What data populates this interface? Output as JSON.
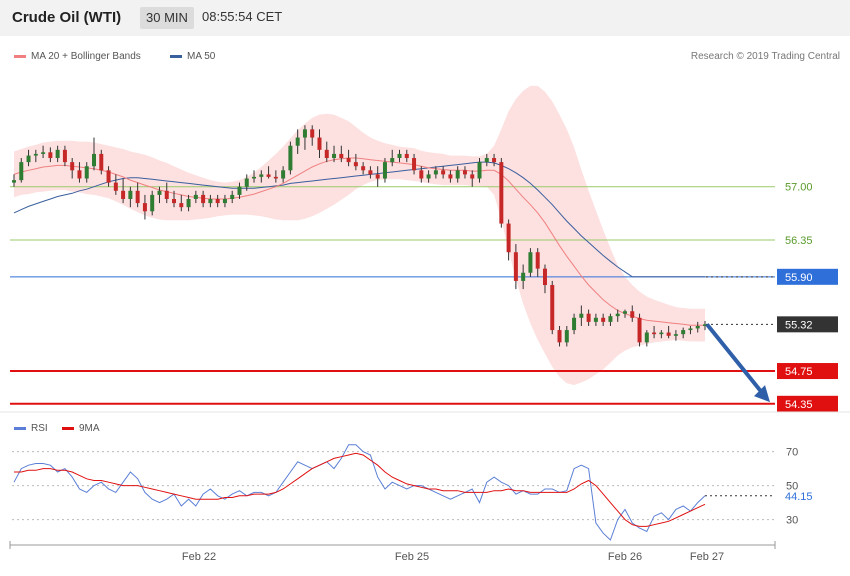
{
  "header": {
    "title": "Crude Oil (WTI)",
    "timeframe": "30 MIN",
    "time": "08:55:54 CET"
  },
  "legend": {
    "main": [
      {
        "name": "MA 20 + Bollinger Bands",
        "color": "#f08080"
      },
      {
        "name": "MA 50",
        "color": "#3a5f9e"
      }
    ],
    "rsi": [
      {
        "name": "RSI",
        "color": "#5b7fd6"
      },
      {
        "name": "9MA",
        "color": "#e01010"
      }
    ]
  },
  "credit": "Research © 2019 Trading Central",
  "chart_data": [
    {
      "type": "line",
      "title": "Crude Oil (WTI)",
      "ylim": [
        54.25,
        58.4
      ],
      "x_labels": [
        "Feb 22",
        "Feb 25",
        "Feb 26",
        "Feb 27"
      ],
      "levels": [
        {
          "value": 57.0,
          "label": "57.00",
          "style": "resistance",
          "color": "#9acb6a"
        },
        {
          "value": 56.35,
          "label": "56.35",
          "style": "resistance",
          "color": "#9acb6a"
        },
        {
          "value": 55.9,
          "label": "55.90",
          "style": "ma",
          "color": "#2f6fd9"
        },
        {
          "value": 55.32,
          "label": "55.32",
          "style": "last",
          "color": "#333333"
        },
        {
          "value": 54.75,
          "label": "54.75",
          "style": "support",
          "color": "#e01010"
        },
        {
          "value": 54.35,
          "label": "54.35",
          "style": "support",
          "color": "#e01010"
        }
      ],
      "ohlc": [
        [
          57.05,
          57.15,
          57.0,
          57.08
        ],
        [
          57.08,
          57.35,
          57.05,
          57.3
        ],
        [
          57.3,
          57.45,
          57.25,
          57.38
        ],
        [
          57.38,
          57.45,
          57.3,
          57.4
        ],
        [
          57.4,
          57.5,
          57.35,
          57.42
        ],
        [
          57.42,
          57.48,
          57.3,
          57.35
        ],
        [
          57.35,
          57.5,
          57.3,
          57.45
        ],
        [
          57.45,
          57.5,
          57.25,
          57.3
        ],
        [
          57.3,
          57.35,
          57.1,
          57.2
        ],
        [
          57.2,
          57.3,
          57.05,
          57.1
        ],
        [
          57.1,
          57.3,
          57.05,
          57.25
        ],
        [
          57.25,
          57.6,
          57.2,
          57.4
        ],
        [
          57.4,
          57.45,
          57.15,
          57.2
        ],
        [
          57.2,
          57.25,
          57.0,
          57.05
        ],
        [
          57.05,
          57.15,
          56.9,
          56.95
        ],
        [
          56.95,
          57.1,
          56.8,
          56.85
        ],
        [
          56.85,
          57.0,
          56.75,
          56.95
        ],
        [
          56.95,
          57.05,
          56.75,
          56.8
        ],
        [
          56.8,
          56.9,
          56.6,
          56.7
        ],
        [
          56.7,
          56.95,
          56.65,
          56.9
        ],
        [
          56.9,
          57.0,
          56.8,
          56.95
        ],
        [
          56.95,
          57.05,
          56.8,
          56.85
        ],
        [
          56.85,
          56.95,
          56.75,
          56.8
        ],
        [
          56.8,
          56.9,
          56.7,
          56.75
        ],
        [
          56.75,
          56.9,
          56.7,
          56.85
        ],
        [
          56.85,
          56.95,
          56.8,
          56.9
        ],
        [
          56.9,
          56.95,
          56.75,
          56.8
        ],
        [
          56.8,
          56.9,
          56.75,
          56.85
        ],
        [
          56.85,
          56.9,
          56.75,
          56.8
        ],
        [
          56.8,
          56.9,
          56.75,
          56.85
        ],
        [
          56.85,
          56.95,
          56.8,
          56.9
        ],
        [
          56.9,
          57.05,
          56.85,
          57.0
        ],
        [
          57.0,
          57.15,
          56.95,
          57.1
        ],
        [
          57.1,
          57.2,
          57.05,
          57.12
        ],
        [
          57.12,
          57.2,
          57.05,
          57.15
        ],
        [
          57.15,
          57.25,
          57.1,
          57.12
        ],
        [
          57.12,
          57.2,
          57.05,
          57.1
        ],
        [
          57.1,
          57.25,
          57.05,
          57.2
        ],
        [
          57.2,
          57.55,
          57.15,
          57.5
        ],
        [
          57.5,
          57.7,
          57.4,
          57.6
        ],
        [
          57.6,
          57.75,
          57.45,
          57.7
        ],
        [
          57.7,
          57.75,
          57.5,
          57.6
        ],
        [
          57.6,
          57.7,
          57.35,
          57.45
        ],
        [
          57.45,
          57.55,
          57.3,
          57.35
        ],
        [
          57.35,
          57.5,
          57.3,
          57.4
        ],
        [
          57.4,
          57.5,
          57.3,
          57.35
        ],
        [
          57.35,
          57.45,
          57.25,
          57.3
        ],
        [
          57.3,
          57.4,
          57.2,
          57.25
        ],
        [
          57.25,
          57.3,
          57.15,
          57.2
        ],
        [
          57.2,
          57.25,
          57.1,
          57.15
        ],
        [
          57.15,
          57.25,
          57.0,
          57.1
        ],
        [
          57.1,
          57.35,
          57.05,
          57.3
        ],
        [
          57.3,
          57.45,
          57.25,
          57.35
        ],
        [
          57.35,
          57.45,
          57.3,
          57.4
        ],
        [
          57.4,
          57.45,
          57.3,
          57.35
        ],
        [
          57.35,
          57.4,
          57.15,
          57.2
        ],
        [
          57.2,
          57.25,
          57.05,
          57.1
        ],
        [
          57.1,
          57.2,
          57.05,
          57.15
        ],
        [
          57.15,
          57.25,
          57.1,
          57.2
        ],
        [
          57.2,
          57.25,
          57.1,
          57.15
        ],
        [
          57.15,
          57.2,
          57.05,
          57.1
        ],
        [
          57.1,
          57.25,
          57.05,
          57.2
        ],
        [
          57.2,
          57.25,
          57.1,
          57.15
        ],
        [
          57.15,
          57.2,
          57.0,
          57.1
        ],
        [
          57.1,
          57.35,
          57.05,
          57.3
        ],
        [
          57.3,
          57.4,
          57.25,
          57.35
        ],
        [
          57.35,
          57.4,
          57.25,
          57.3
        ],
        [
          57.3,
          57.35,
          56.5,
          56.55
        ],
        [
          56.55,
          56.6,
          56.1,
          56.2
        ],
        [
          56.2,
          56.3,
          55.75,
          55.85
        ],
        [
          55.85,
          56.05,
          55.75,
          55.95
        ],
        [
          55.95,
          56.25,
          55.9,
          56.2
        ],
        [
          56.2,
          56.25,
          55.9,
          56.0
        ],
        [
          56.0,
          56.05,
          55.7,
          55.8
        ],
        [
          55.8,
          55.85,
          55.2,
          55.25
        ],
        [
          55.25,
          55.3,
          55.05,
          55.1
        ],
        [
          55.1,
          55.3,
          55.05,
          55.25
        ],
        [
          55.25,
          55.45,
          55.2,
          55.4
        ],
        [
          55.4,
          55.55,
          55.3,
          55.45
        ],
        [
          55.45,
          55.5,
          55.3,
          55.35
        ],
        [
          55.35,
          55.45,
          55.3,
          55.4
        ],
        [
          55.4,
          55.45,
          55.3,
          55.35
        ],
        [
          55.35,
          55.45,
          55.3,
          55.42
        ],
        [
          55.42,
          55.5,
          55.35,
          55.45
        ],
        [
          55.45,
          55.5,
          55.4,
          55.48
        ],
        [
          55.48,
          55.55,
          55.35,
          55.4
        ],
        [
          55.4,
          55.45,
          55.05,
          55.1
        ],
        [
          55.1,
          55.25,
          55.05,
          55.22
        ],
        [
          55.22,
          55.3,
          55.15,
          55.2
        ],
        [
          55.2,
          55.25,
          55.15,
          55.22
        ],
        [
          55.22,
          55.3,
          55.15,
          55.18
        ],
        [
          55.18,
          55.25,
          55.12,
          55.2
        ],
        [
          55.2,
          55.28,
          55.15,
          55.25
        ],
        [
          55.25,
          55.3,
          55.2,
          55.27
        ],
        [
          55.27,
          55.35,
          55.22,
          55.3
        ],
        [
          55.3,
          55.36,
          55.25,
          55.32
        ]
      ],
      "ma20": [
        57.15,
        57.18,
        57.2,
        57.22,
        57.24,
        57.25,
        57.26,
        57.26,
        57.25,
        57.24,
        57.23,
        57.22,
        57.2,
        57.18,
        57.15,
        57.12,
        57.08,
        57.05,
        57.02,
        56.99,
        56.96,
        56.94,
        56.92,
        56.9,
        56.88,
        56.87,
        56.86,
        56.85,
        56.85,
        56.85,
        56.86,
        56.87,
        56.89,
        56.91,
        56.94,
        56.97,
        57.0,
        57.04,
        57.09,
        57.14,
        57.19,
        57.24,
        57.28,
        57.31,
        57.33,
        57.34,
        57.35,
        57.35,
        57.34,
        57.33,
        57.32,
        57.31,
        57.3,
        57.29,
        57.28,
        57.27,
        57.25,
        57.23,
        57.22,
        57.21,
        57.2,
        57.2,
        57.2,
        57.19,
        57.19,
        57.2,
        57.2,
        57.15,
        57.07,
        56.97,
        56.87,
        56.78,
        56.68,
        56.56,
        56.42,
        56.28,
        56.15,
        56.03,
        55.91,
        55.8,
        55.71,
        55.62,
        55.55,
        55.49,
        55.45,
        55.42,
        55.39,
        55.37,
        55.36,
        55.35,
        55.34,
        55.33,
        55.32,
        55.31,
        55.31,
        55.31
      ],
      "ma50": [
        56.68,
        56.72,
        56.76,
        56.79,
        56.82,
        56.85,
        56.88,
        56.9,
        56.92,
        56.95,
        56.97,
        57.0,
        57.03,
        57.06,
        57.08,
        57.1,
        57.11,
        57.11,
        57.1,
        57.09,
        57.08,
        57.07,
        57.06,
        57.05,
        57.04,
        57.03,
        57.02,
        57.01,
        57.0,
        56.99,
        56.98,
        56.98,
        56.98,
        56.98,
        56.99,
        57.0,
        57.01,
        57.02,
        57.04,
        57.05,
        57.06,
        57.07,
        57.08,
        57.09,
        57.1,
        57.11,
        57.12,
        57.13,
        57.14,
        57.15,
        57.16,
        57.17,
        57.18,
        57.19,
        57.2,
        57.21,
        57.22,
        57.23,
        57.24,
        57.25,
        57.26,
        57.27,
        57.28,
        57.29,
        57.3,
        57.3,
        57.29,
        57.26,
        57.22,
        57.17,
        57.11,
        57.04,
        56.96,
        56.87,
        56.78,
        56.68,
        56.58,
        56.49,
        56.4,
        56.32,
        56.24,
        56.16,
        56.09,
        56.02,
        55.96,
        55.9,
        55.9,
        55.9,
        55.9,
        55.9,
        55.9,
        55.9,
        55.9,
        55.9,
        55.9,
        55.9
      ],
      "bb_width": [
        0.28,
        0.28,
        0.29,
        0.29,
        0.3,
        0.3,
        0.3,
        0.3,
        0.31,
        0.31,
        0.32,
        0.32,
        0.32,
        0.32,
        0.33,
        0.34,
        0.35,
        0.36,
        0.37,
        0.37,
        0.36,
        0.35,
        0.33,
        0.31,
        0.29,
        0.27,
        0.25,
        0.23,
        0.21,
        0.2,
        0.2,
        0.21,
        0.23,
        0.26,
        0.3,
        0.35,
        0.4,
        0.45,
        0.5,
        0.55,
        0.58,
        0.6,
        0.6,
        0.58,
        0.55,
        0.5,
        0.45,
        0.38,
        0.32,
        0.27,
        0.24,
        0.22,
        0.21,
        0.2,
        0.2,
        0.2,
        0.19,
        0.19,
        0.19,
        0.19,
        0.18,
        0.18,
        0.18,
        0.18,
        0.18,
        0.2,
        0.3,
        0.55,
        0.85,
        1.1,
        1.3,
        1.45,
        1.55,
        1.6,
        1.62,
        1.6,
        1.55,
        1.45,
        1.3,
        1.15,
        1.0,
        0.85,
        0.7,
        0.55,
        0.45,
        0.38,
        0.33,
        0.29,
        0.26,
        0.24,
        0.22,
        0.2,
        0.2,
        0.2,
        0.2,
        0.2
      ]
    },
    {
      "type": "line",
      "title": "RSI",
      "ylim": [
        18,
        78
      ],
      "y_ticks": [
        30,
        50,
        70
      ],
      "last_value_label": "44.15",
      "series": [
        {
          "name": "RSI",
          "values": [
            52,
            60,
            62,
            63,
            63,
            62,
            58,
            60,
            55,
            48,
            46,
            50,
            52,
            48,
            46,
            52,
            58,
            54,
            46,
            42,
            40,
            42,
            45,
            38,
            42,
            38,
            45,
            48,
            44,
            42,
            45,
            47,
            44,
            46,
            46,
            44,
            46,
            52,
            58,
            64,
            62,
            60,
            62,
            64,
            60,
            66,
            74,
            74,
            70,
            68,
            55,
            48,
            52,
            50,
            48,
            50,
            50,
            48,
            46,
            44,
            42,
            44,
            46,
            48,
            40,
            52,
            55,
            52,
            50,
            45,
            47,
            45,
            45,
            48,
            48,
            46,
            47,
            60,
            62,
            60,
            28,
            22,
            18,
            30,
            36,
            28,
            25,
            23,
            32,
            34,
            30,
            36,
            38,
            35,
            40,
            44
          ]
        },
        {
          "name": "9MA",
          "values": [
            58,
            58,
            59,
            59,
            60,
            60,
            59,
            59,
            58,
            56,
            54,
            53,
            53,
            52,
            51,
            50,
            50,
            50,
            49,
            48,
            47,
            46,
            45,
            44,
            43,
            42,
            42,
            42,
            42,
            43,
            43,
            44,
            44,
            45,
            45,
            45,
            46,
            48,
            51,
            54,
            57,
            60,
            62,
            64,
            66,
            67,
            68,
            69,
            68,
            65,
            62,
            58,
            55,
            53,
            51,
            50,
            49,
            48,
            48,
            47,
            47,
            47,
            46,
            46,
            46,
            46,
            47,
            47,
            48,
            47,
            47,
            46,
            46,
            46,
            46,
            46,
            46,
            48,
            51,
            53,
            50,
            45,
            40,
            35,
            30,
            27,
            26,
            26,
            27,
            28,
            29,
            31,
            33,
            35,
            37,
            39
          ]
        }
      ]
    }
  ]
}
